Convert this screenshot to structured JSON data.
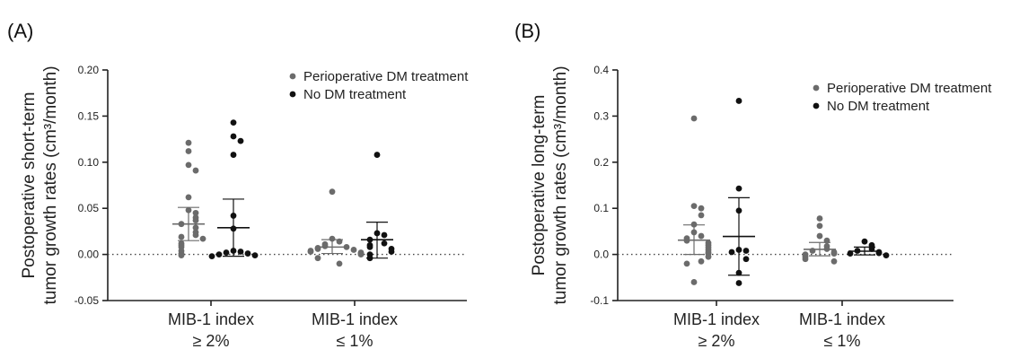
{
  "colors": {
    "perioperative": "#6b6b6b",
    "no_treatment": "#111111",
    "axis": "#222222",
    "zero_line": "#444444"
  },
  "chart_data": [
    {
      "type": "scatter",
      "panel_label": "(A)",
      "ylabel": "Postoperative short-term\ntumor growth rates  (cm³/month)",
      "ylim": [
        -0.05,
        0.2
      ],
      "yticks": [
        -0.05,
        0.0,
        0.05,
        0.1,
        0.15,
        0.2
      ],
      "ytick_labels": [
        "-0.05",
        "0.00",
        "0.05",
        "0.10",
        "0.15",
        "0.20"
      ],
      "categories": [
        "MIB-1 index\n≥ 2%",
        "MIB-1 index\n≤ 1%"
      ],
      "legend": {
        "position": "top-right",
        "entries": [
          "Perioperative DM treatment",
          "No DM treatment"
        ]
      },
      "reference_line": 0,
      "series": [
        {
          "name": "Perioperative DM treatment",
          "groups": [
            {
              "category_index": 0,
              "values": [
                0.121,
                0.112,
                0.097,
                0.091,
                0.062,
                0.048,
                0.045,
                0.04,
                0.037,
                0.033,
                0.029,
                0.024,
                0.021,
                0.019,
                0.017,
                0.012,
                0.01,
                0.008,
                0.004,
                0.001,
                -0.001
              ],
              "mean": 0.033,
              "err_low": 0.015,
              "err_high": 0.051
            },
            {
              "category_index": 1,
              "values": [
                0.068,
                0.017,
                0.014,
                0.011,
                0.009,
                0.008,
                0.007,
                0.006,
                0.005,
                0.004,
                0.003,
                0.002,
                0.001,
                0.0,
                -0.004,
                -0.01
              ],
              "mean": 0.008,
              "err_low": 0.001,
              "err_high": 0.016
            }
          ]
        },
        {
          "name": "No DM treatment",
          "groups": [
            {
              "category_index": 0,
              "values": [
                0.143,
                0.128,
                0.123,
                0.108,
                0.042,
                0.028,
                0.004,
                0.003,
                0.002,
                0.001,
                0.0,
                -0.001,
                -0.002
              ],
              "mean": 0.029,
              "err_low": -0.002,
              "err_high": 0.06
            },
            {
              "category_index": 1,
              "values": [
                0.108,
                0.023,
                0.021,
                0.016,
                0.012,
                0.01,
                0.008,
                0.006,
                0.003,
                0.0,
                -0.004
              ],
              "mean": 0.016,
              "err_low": -0.004,
              "err_high": 0.035
            }
          ]
        }
      ]
    },
    {
      "type": "scatter",
      "panel_label": "(B)",
      "ylabel": "Postoperative long-term\ntumor growth rates  (cm³/month)",
      "ylim": [
        -0.1,
        0.4
      ],
      "yticks": [
        -0.1,
        0.0,
        0.1,
        0.2,
        0.3,
        0.4
      ],
      "ytick_labels": [
        "-0.1",
        "0.0",
        "0.1",
        "0.2",
        "0.3",
        "0.4"
      ],
      "categories": [
        "MIB-1 index\n≥ 2%",
        "MIB-1 index\n≤ 1%"
      ],
      "legend": {
        "position": "top-right",
        "entries": [
          "Perioperative DM treatment",
          "No DM treatment"
        ]
      },
      "reference_line": 0,
      "series": [
        {
          "name": "Perioperative DM treatment",
          "groups": [
            {
              "category_index": 0,
              "values": [
                0.295,
                0.105,
                0.1,
                0.085,
                0.065,
                0.048,
                0.04,
                0.035,
                0.03,
                0.025,
                0.02,
                0.015,
                0.01,
                0.005,
                0.002,
                -0.005,
                -0.015,
                -0.02,
                -0.06
              ],
              "mean": 0.031,
              "err_low": 0.0,
              "err_high": 0.064
            },
            {
              "category_index": 1,
              "values": [
                0.078,
                0.062,
                0.04,
                0.03,
                0.018,
                0.012,
                0.008,
                0.005,
                0.002,
                0.0,
                -0.005,
                -0.01,
                -0.015
              ],
              "mean": 0.011,
              "err_low": -0.003,
              "err_high": 0.026
            }
          ]
        },
        {
          "name": "No DM treatment",
          "groups": [
            {
              "category_index": 0,
              "values": [
                0.333,
                0.143,
                0.095,
                0.01,
                0.008,
                0.005,
                -0.01,
                -0.04,
                -0.062
              ],
              "mean": 0.039,
              "err_low": -0.045,
              "err_high": 0.123
            },
            {
              "category_index": 1,
              "values": [
                0.028,
                0.02,
                0.012,
                0.008,
                0.005,
                0.003,
                0.002,
                -0.002
              ],
              "mean": 0.007,
              "err_low": -0.001,
              "err_high": 0.016
            }
          ]
        }
      ]
    }
  ]
}
